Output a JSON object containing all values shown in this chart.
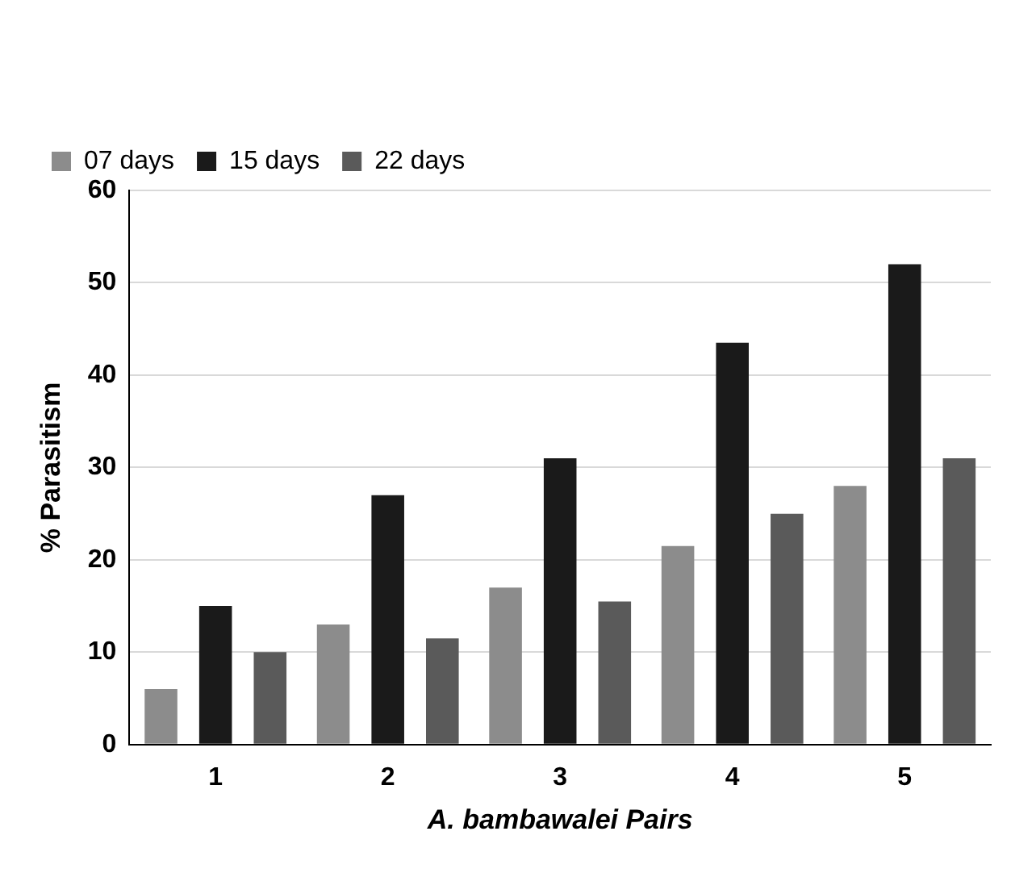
{
  "chart_data": {
    "type": "bar",
    "xlabel": "A. bambawalei Pairs",
    "ylabel": "% Parasitism",
    "categories": [
      "1",
      "2",
      "3",
      "4",
      "5"
    ],
    "series": [
      {
        "name": "07 days",
        "color": "#8c8c8c",
        "values": [
          6,
          13,
          17,
          21.5,
          28
        ]
      },
      {
        "name": "15 days",
        "color": "#1a1a1a",
        "values": [
          15,
          27,
          31,
          43.5,
          52
        ]
      },
      {
        "name": "22 days",
        "color": "#5a5a5a",
        "values": [
          10,
          11.5,
          15.5,
          25,
          31
        ]
      }
    ],
    "ylim": [
      0,
      60
    ],
    "yticks": [
      0,
      10,
      20,
      30,
      40,
      50,
      60
    ],
    "grid": "y",
    "legend": "top left"
  }
}
